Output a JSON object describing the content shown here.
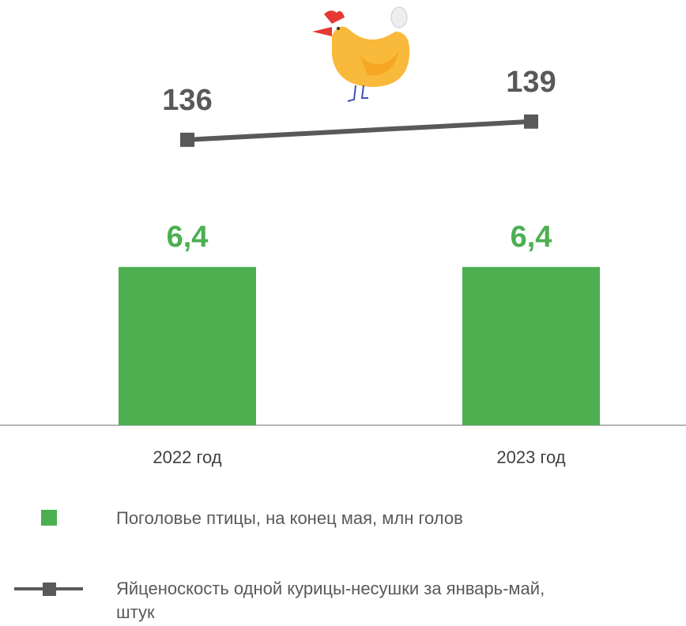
{
  "chart_data": {
    "type": "bar",
    "categories": [
      "2022 год",
      "2023 год"
    ],
    "series": [
      {
        "name": "Поголовье птицы, на конец мая, млн голов",
        "type": "bar",
        "color": "#4caf50",
        "values": [
          6.4,
          6.4
        ],
        "value_labels": [
          "6,4",
          "6,4"
        ]
      },
      {
        "name": "Яйценоскость одной курицы-несушки за январь-май, штук",
        "type": "line",
        "axis": "y2",
        "color": "#595959",
        "values": [
          136,
          139
        ]
      }
    ],
    "ylim": [
      0,
      14
    ],
    "y2lim": [
      89,
      146
    ]
  }
}
